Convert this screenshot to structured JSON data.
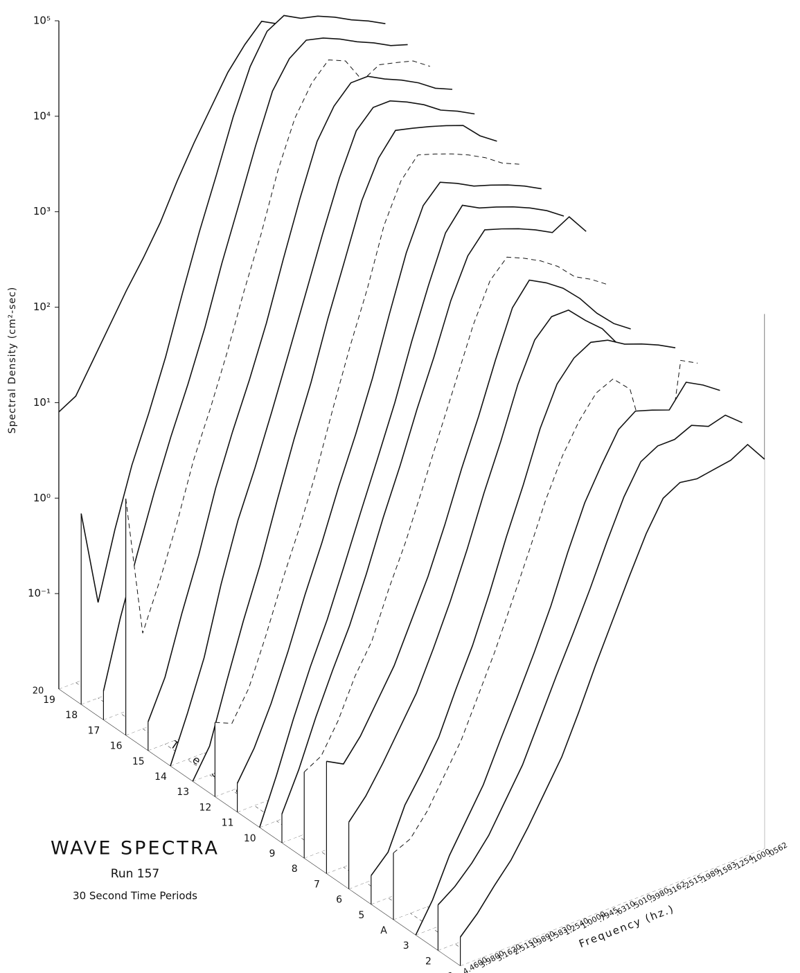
{
  "chart_data": {
    "type": "waterfall3d",
    "title": "WAVE SPECTRA",
    "subtitle": "Run 157",
    "note": "30 Second Time Periods",
    "y_label": "Spectral Density (cm²-sec)",
    "corner_label": "20",
    "time_label": "Time Period",
    "freq_label": "Frequency (hz.)",
    "log": true,
    "color": "#111",
    "ylim": [
      0.01,
      100000
    ],
    "yticks": [
      {
        "value": 0.1,
        "label": "10⁻¹"
      },
      {
        "value": 1,
        "label": "10⁰"
      },
      {
        "value": 10,
        "label": "10¹"
      },
      {
        "value": 100,
        "label": "10²"
      },
      {
        "value": 1000,
        "label": "10³"
      },
      {
        "value": 10000,
        "label": "10⁴"
      },
      {
        "value": 100000,
        "label": "10⁵"
      }
    ],
    "time_periods": [
      "1",
      "2",
      "3",
      "A",
      "5",
      "6",
      "7",
      "8",
      "9",
      "10",
      "11",
      "12",
      "13",
      "14",
      "15",
      "16",
      "17",
      "18",
      "19"
    ],
    "frequencies": [
      "4.4600",
      "3.9800",
      "3.1620",
      "2.5150",
      "1.9890",
      "1.5830",
      "1.2540",
      "1.0000",
      ".7945",
      ".6310",
      ".5010",
      ".3980",
      ".3162",
      ".2515",
      ".1989",
      ".1583",
      ".1254",
      ".1000",
      ".0562"
    ],
    "series": [
      {
        "values": [
          0.02,
          0.03,
          0.05,
          0.08,
          0.15,
          0.3,
          0.6,
          1.5,
          4,
          10,
          25,
          60,
          120,
          150,
          140,
          150,
          160,
          200,
          120
        ]
      },
      {
        "values": [
          0.03,
          0.04,
          0.06,
          0.1,
          0.2,
          0.4,
          1,
          2.5,
          6,
          15,
          40,
          100,
          200,
          250,
          250,
          300,
          250,
          280,
          200
        ]
      },
      {
        "values": [
          0.01,
          0.02,
          0.05,
          0.1,
          0.2,
          0.5,
          1.2,
          3,
          8,
          25,
          70,
          150,
          300,
          400,
          350,
          300,
          500,
          400,
          300
        ]
      },
      {
        "values": [
          0.05,
          0.06,
          0.1,
          0.2,
          0.4,
          1,
          2.5,
          7,
          20,
          60,
          150,
          300,
          500,
          600,
          400,
          80,
          30,
          500,
          400
        ]
      },
      {
        "values": [
          0.02,
          0.03,
          0.08,
          0.15,
          0.3,
          0.8,
          2,
          6,
          20,
          60,
          200,
          500,
          800,
          1000,
          900,
          700,
          600,
          500,
          400
        ]
      },
      {
        "values": [
          0.05,
          0.08,
          0.15,
          0.3,
          0.6,
          1.5,
          4,
          12,
          40,
          120,
          400,
          1000,
          1500,
          1500,
          1000,
          700,
          400,
          300,
          200
        ]
      },
      {
        "values": [
          0.15,
          0.12,
          0.2,
          0.4,
          0.8,
          2,
          5,
          15,
          50,
          150,
          500,
          1500,
          2500,
          2000,
          1500,
          1000,
          600,
          400,
          300
        ]
      },
      {
        "values": [
          0.08,
          0.1,
          0.2,
          0.5,
          1,
          3,
          8,
          25,
          80,
          250,
          800,
          2000,
          3000,
          2500,
          2000,
          1500,
          1000,
          800,
          600
        ]
      },
      {
        "values": [
          0.02,
          0.05,
          0.15,
          0.4,
          1,
          3,
          10,
          30,
          100,
          300,
          1000,
          2500,
          4000,
          3500,
          3000,
          2500,
          2000,
          2500,
          1500
        ]
      },
      {
        "values": [
          0.01,
          0.03,
          0.1,
          0.3,
          0.8,
          2.5,
          8,
          25,
          80,
          300,
          1000,
          3000,
          5000,
          4000,
          3500,
          3000,
          2500,
          2000,
          1500
        ]
      },
      {
        "values": [
          0.02,
          0.04,
          0.1,
          0.3,
          1,
          3,
          10,
          30,
          100,
          400,
          1500,
          4000,
          6000,
          5000,
          4000,
          3500,
          3000,
          2500,
          2000
        ]
      },
      {
        "values": [
          0.06,
          0.05,
          0.1,
          0.3,
          1,
          3,
          10,
          40,
          150,
          500,
          2000,
          5000,
          8000,
          7000,
          6000,
          5000,
          4000,
          3000,
          2500
        ]
      },
      {
        "values": [
          0.01,
          0.02,
          0.08,
          0.3,
          1,
          4,
          15,
          50,
          200,
          700,
          2500,
          6000,
          10000,
          9000,
          8000,
          7000,
          6000,
          4000,
          3000
        ]
      },
      {
        "values": [
          0.01,
          0.03,
          0.1,
          0.5,
          2,
          6,
          20,
          70,
          250,
          900,
          3000,
          8000,
          12000,
          12000,
          10000,
          8000,
          6000,
          5000,
          4000
        ]
      },
      {
        "values": [
          0.02,
          0.05,
          0.2,
          0.7,
          3,
          10,
          30,
          100,
          400,
          1500,
          5000,
          10000,
          15000,
          15000,
          12000,
          10000,
          8000,
          6000,
          5000
        ]
      },
      {
        "values": [
          3,
          0.1,
          0.3,
          1,
          4,
          12,
          40,
          150,
          500,
          2000,
          6000,
          12000,
          18000,
          15000,
          8000,
          10000,
          9000,
          8000,
          6000
        ]
      },
      {
        "values": [
          0.02,
          0.1,
          0.4,
          1.5,
          5,
          15,
          50,
          200,
          700,
          2500,
          8000,
          15000,
          20000,
          18000,
          15000,
          12000,
          10000,
          8000,
          7000
        ]
      },
      {
        "values": [
          1,
          0.1,
          0.5,
          2,
          6,
          20,
          80,
          300,
          1000,
          3500,
          10000,
          20000,
          25000,
          20000,
          18000,
          15000,
          12000,
          10000,
          8000
        ]
      },
      {
        "values": [
          8,
          10,
          20,
          40,
          80,
          150,
          300,
          700,
          1500,
          3000,
          6000,
          10000,
          15000,
          12000,
          12000,
          9000,
          7000,
          5000,
          3000
        ]
      }
    ]
  }
}
